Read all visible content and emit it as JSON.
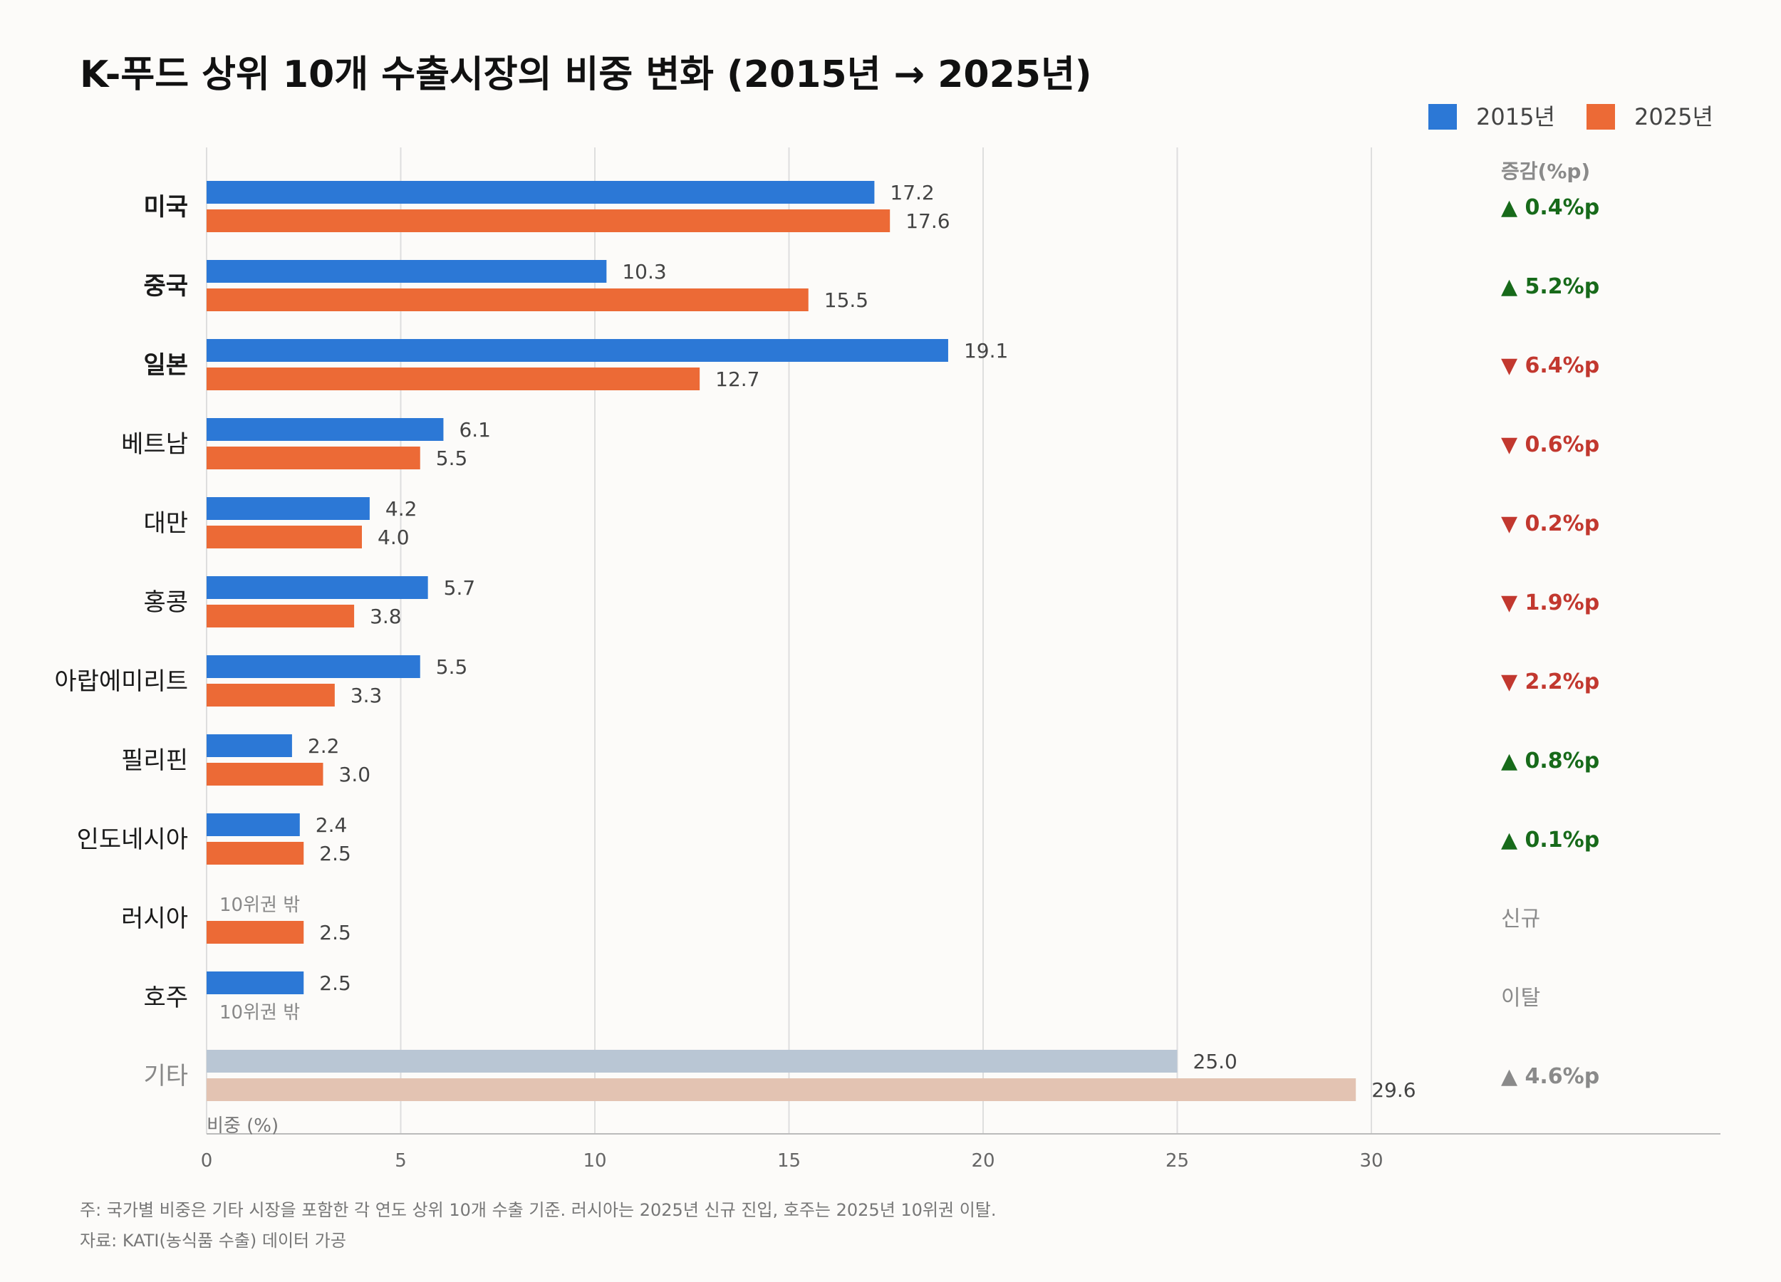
{
  "page_title": "K-푸드 상위 10개 수출시장의 비중 변화 (2015년 → 2025년)",
  "colors": {
    "y2015": "#2c78d6",
    "y2025": "#ec6a36",
    "other_2015": "#b9c6d4",
    "other_2025": "#e3c3b2",
    "up": "#176a1a",
    "down": "#c2382f",
    "neutral": "#8a8a8a"
  },
  "chart_data": {
    "type": "bar",
    "orientation": "horizontal",
    "title": "K-푸드 상위 10개 수출시장의 비중 변화 (2015년 → 2025년)",
    "xlabel": "비중 (%)",
    "xlim": [
      0,
      30
    ],
    "xticks": [
      0,
      5,
      10,
      15,
      20,
      25,
      30
    ],
    "grid": true,
    "legend_position": "top-right",
    "categories": [
      "미국",
      "중국",
      "일본",
      "베트남",
      "대만",
      "홍콩",
      "아랍에미리트",
      "필리핀",
      "인도네시아",
      "러시아",
      "호주",
      "기타"
    ],
    "bold_categories": [
      "미국",
      "중국",
      "일본"
    ],
    "muted_categories": [
      "기타"
    ],
    "series": [
      {
        "name": "2015년",
        "values": [
          17.2,
          10.3,
          19.1,
          6.1,
          4.2,
          5.7,
          5.5,
          2.2,
          2.4,
          null,
          2.5,
          25.0
        ]
      },
      {
        "name": "2025년",
        "values": [
          17.6,
          15.5,
          12.7,
          5.5,
          4.0,
          3.8,
          3.3,
          3.0,
          2.5,
          2.5,
          null,
          29.6
        ]
      }
    ],
    "missing_label": "10위권 밖",
    "change_header": "증감(%p)",
    "changes": [
      {
        "dir": "up",
        "text": "▲ 0.4%p"
      },
      {
        "dir": "up",
        "text": "▲ 5.2%p"
      },
      {
        "dir": "down",
        "text": "▼ 6.4%p"
      },
      {
        "dir": "down",
        "text": "▼ 0.6%p"
      },
      {
        "dir": "down",
        "text": "▼ 0.2%p"
      },
      {
        "dir": "down",
        "text": "▼ 1.9%p"
      },
      {
        "dir": "down",
        "text": "▼ 2.2%p"
      },
      {
        "dir": "up",
        "text": "▲ 0.8%p"
      },
      {
        "dir": "up",
        "text": "▲ 0.1%p"
      },
      {
        "dir": "neutral",
        "text": "신규"
      },
      {
        "dir": "neutral",
        "text": "이탈"
      },
      {
        "dir": "neutral",
        "text": "▲ 4.6%p"
      }
    ]
  },
  "footnote": "주: 국가별 비중은 기타 시장을 포함한 각 연도 상위 10개 수출 기준. 러시아는 2025년 신규 진입, 호주는 2025년 10위권 이탈.",
  "source": "자료: KATI(농식품 수출) 데이터 가공"
}
